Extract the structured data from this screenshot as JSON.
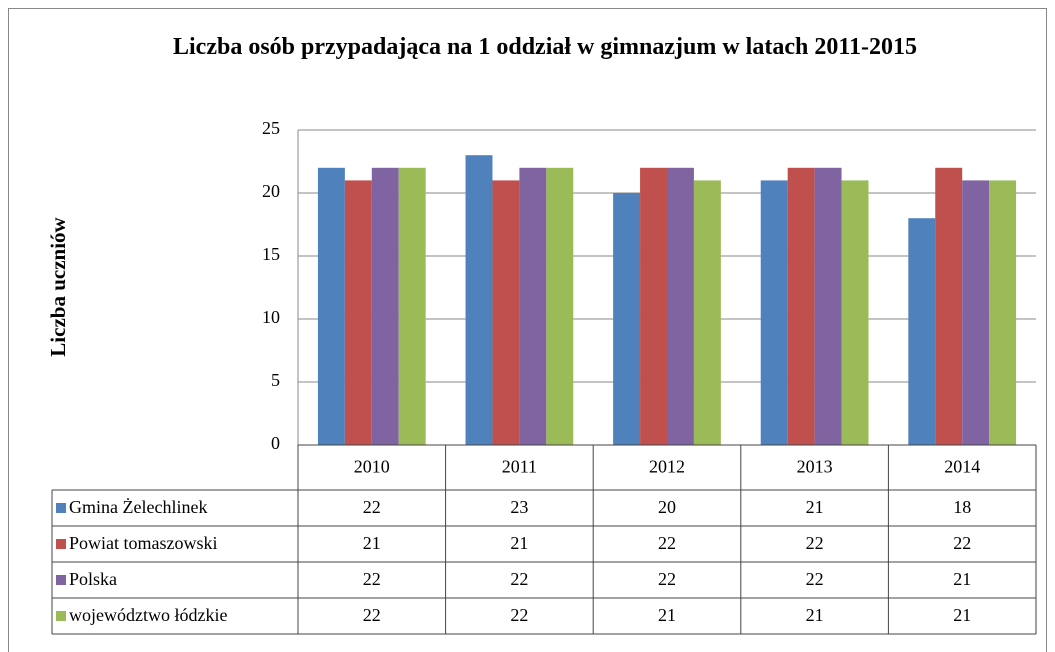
{
  "chart_data": {
    "type": "bar",
    "title": "Liczba osób przypadająca na 1 oddział w gimnazjum w latach 2011-2015",
    "y_label": "Liczba uczniów",
    "categories": [
      "2010",
      "2011",
      "2012",
      "2013",
      "2014"
    ],
    "series": [
      {
        "name": "Gmina Żelechlinek",
        "color": "#4f81bd",
        "values": [
          22,
          23,
          20,
          21,
          18
        ]
      },
      {
        "name": "Powiat tomaszowski",
        "color": "#c0504d",
        "values": [
          21,
          21,
          22,
          22,
          22
        ]
      },
      {
        "name": "Polska",
        "color": "#8064a2",
        "values": [
          22,
          22,
          22,
          22,
          21
        ]
      },
      {
        "name": "województwo łódzkie",
        "color": "#9bbb59",
        "values": [
          22,
          22,
          21,
          21,
          21
        ]
      }
    ],
    "ylim": [
      0,
      25
    ],
    "yticks": [
      0,
      5,
      10,
      15,
      20,
      25
    ],
    "grid": true,
    "data_table": true
  }
}
